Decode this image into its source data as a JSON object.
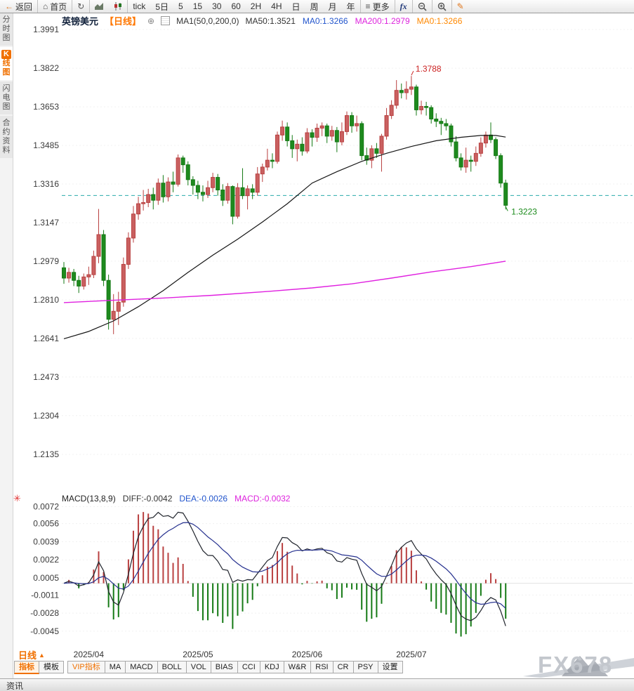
{
  "icons": {
    "back-arrow": "←",
    "home": "⌂",
    "refresh": "↻",
    "menu": "≡",
    "pencil": "✎",
    "add": "⊕",
    "indicator-settings": "✳"
  },
  "toolbar": {
    "items": [
      {
        "name": "back-button",
        "icon": "back-arrow",
        "accent": true,
        "label": "返回",
        "divider": true
      },
      {
        "name": "home-button",
        "icon": "home",
        "label": "首页",
        "divider": true
      },
      {
        "name": "refresh-button",
        "icon": "refresh",
        "divider": true
      },
      {
        "name": "area-chart-button",
        "icon": "area-chart"
      },
      {
        "name": "candle-chart-button",
        "icon": "candle-chart",
        "divider": true
      },
      {
        "name": "period-tick-button",
        "label": "tick"
      },
      {
        "name": "period-5d-button",
        "label": "5日"
      },
      {
        "name": "period-5m-button",
        "label": "5"
      },
      {
        "name": "period-15m-button",
        "label": "15"
      },
      {
        "name": "period-30m-button",
        "label": "30"
      },
      {
        "name": "period-60m-button",
        "label": "60"
      },
      {
        "name": "period-2h-button",
        "label": "2H"
      },
      {
        "name": "period-4h-button",
        "label": "4H"
      },
      {
        "name": "period-day-button",
        "label": "日"
      },
      {
        "name": "period-week-button",
        "label": "周"
      },
      {
        "name": "period-month-button",
        "label": "月"
      },
      {
        "name": "period-year-button",
        "label": "年",
        "divider": true
      },
      {
        "name": "more-button",
        "icon": "menu",
        "label": "更多",
        "divider": true
      },
      {
        "name": "fx-button",
        "label": "fx",
        "cls": "fx",
        "divider": true
      },
      {
        "name": "zoom-out-button",
        "icon": "zoom-out",
        "divider": true
      },
      {
        "name": "zoom-in-button",
        "icon": "zoom-in",
        "divider": true
      },
      {
        "name": "draw-button",
        "icon": "pencil",
        "accent": true
      }
    ]
  },
  "sidebar": {
    "items": [
      {
        "name": "tab-time-chart",
        "label": "分时图",
        "selected": false
      },
      {
        "name": "tab-candle-chart",
        "label": "K线图",
        "selected": true,
        "badge_first": true
      },
      {
        "name": "tab-lightning-chart",
        "label": "闪电图",
        "selected": false
      },
      {
        "name": "tab-contract-info",
        "label": "合约资料",
        "selected": false
      }
    ]
  },
  "chart_header": {
    "symbol": "英镑美元",
    "period_tag": "【日线】",
    "ma_settings": "MA1(50,0,200,0)",
    "ma_values": [
      {
        "text": "MA50:1.3521",
        "color": "#333333"
      },
      {
        "text": "MA0:1.3266",
        "color": "#2255cc"
      },
      {
        "text": "MA200:1.2979",
        "color": "#dd22dd"
      },
      {
        "text": "MA0:1.3266",
        "color": "#ff8800"
      }
    ]
  },
  "macd_header": {
    "title": "MACD(13,8,9)",
    "values": [
      {
        "text": "DIFF:-0.0042",
        "color": "#333333"
      },
      {
        "text": "DEA:-0.0026",
        "color": "#2255cc"
      },
      {
        "text": "MACD:-0.0032",
        "color": "#dd22dd"
      }
    ]
  },
  "chart_data": {
    "type": "candlestick",
    "symbol": "英镑美元 (GBP/USD)",
    "period": "日线",
    "indicator": "MACD(13,8,9)",
    "price_axis": [
      1.3991,
      1.3822,
      1.3653,
      1.3485,
      1.3316,
      1.3147,
      1.2979,
      1.281,
      1.2641,
      1.2473,
      1.2304,
      1.2135
    ],
    "macd_axis": [
      0.0072,
      0.0056,
      0.0039,
      0.0022,
      0.0005,
      -0.0011,
      -0.0028,
      -0.0045
    ],
    "date_axis": [
      {
        "index": 5,
        "label": "2025/04"
      },
      {
        "index": 27,
        "label": "2025/05"
      },
      {
        "index": 49,
        "label": "2025/06"
      },
      {
        "index": 70,
        "label": "2025/07"
      }
    ],
    "reference_price": 1.3266,
    "annotations": [
      {
        "type": "high",
        "index": 70,
        "price": 1.3788,
        "label": "1.3788",
        "color": "#cc2222"
      },
      {
        "type": "last",
        "index": 89,
        "price": 1.3223,
        "label": "1.3223",
        "color": "#1a8a1a"
      }
    ],
    "macd_params": {
      "slow": 13,
      "fast": 8,
      "signal": 9
    },
    "ma50_points": [
      [
        0,
        1.264
      ],
      [
        5,
        1.2672
      ],
      [
        10,
        1.2718
      ],
      [
        15,
        1.278
      ],
      [
        20,
        1.285
      ],
      [
        25,
        1.293
      ],
      [
        30,
        1.3005
      ],
      [
        35,
        1.3075
      ],
      [
        40,
        1.315
      ],
      [
        45,
        1.323
      ],
      [
        50,
        1.332
      ],
      [
        55,
        1.337
      ],
      [
        60,
        1.3415
      ],
      [
        65,
        1.345
      ],
      [
        70,
        1.348
      ],
      [
        75,
        1.3505
      ],
      [
        80,
        1.352
      ],
      [
        84,
        1.3528
      ],
      [
        87,
        1.3528
      ],
      [
        89,
        1.3521
      ]
    ],
    "ma200_points": [
      [
        0,
        1.2798
      ],
      [
        10,
        1.2808
      ],
      [
        20,
        1.2818
      ],
      [
        30,
        1.283
      ],
      [
        40,
        1.2845
      ],
      [
        50,
        1.2862
      ],
      [
        58,
        1.288
      ],
      [
        66,
        1.2905
      ],
      [
        74,
        1.2932
      ],
      [
        82,
        1.2955
      ],
      [
        89,
        1.2979
      ]
    ],
    "candles": [
      [
        1.295,
        1.2975,
        1.288,
        1.2905
      ],
      [
        1.2905,
        1.295,
        1.2885,
        1.293
      ],
      [
        1.293,
        1.2945,
        1.287,
        1.2895
      ],
      [
        1.2895,
        1.2915,
        1.284,
        1.287
      ],
      [
        1.287,
        1.2925,
        1.2855,
        1.291
      ],
      [
        1.291,
        1.2955,
        1.2875,
        1.292
      ],
      [
        1.292,
        1.3025,
        1.2905,
        1.3
      ],
      [
        1.3,
        1.3207,
        1.297,
        1.3095
      ],
      [
        1.3095,
        1.3115,
        1.287,
        1.2895
      ],
      [
        1.2895,
        1.292,
        1.268,
        1.2725
      ],
      [
        1.2725,
        1.2835,
        1.266,
        1.276
      ],
      [
        1.276,
        1.2845,
        1.27,
        1.28
      ],
      [
        1.28,
        1.2995,
        1.278,
        1.2965
      ],
      [
        1.2965,
        1.3105,
        1.2945,
        1.308
      ],
      [
        1.308,
        1.322,
        1.306,
        1.3185
      ],
      [
        1.3185,
        1.326,
        1.316,
        1.323
      ],
      [
        1.323,
        1.329,
        1.32,
        1.3235
      ],
      [
        1.3235,
        1.3295,
        1.3215,
        1.327
      ],
      [
        1.327,
        1.33,
        1.3205,
        1.3245
      ],
      [
        1.3245,
        1.334,
        1.3225,
        1.332
      ],
      [
        1.332,
        1.3355,
        1.3235,
        1.326
      ],
      [
        1.326,
        1.3345,
        1.324,
        1.3325
      ],
      [
        1.3325,
        1.337,
        1.328,
        1.3315
      ],
      [
        1.3315,
        1.3445,
        1.3305,
        1.343
      ],
      [
        1.343,
        1.344,
        1.3365,
        1.34
      ],
      [
        1.34,
        1.3415,
        1.331,
        1.3335
      ],
      [
        1.3335,
        1.335,
        1.327,
        1.331
      ],
      [
        1.331,
        1.333,
        1.325,
        1.328
      ],
      [
        1.328,
        1.331,
        1.324,
        1.327
      ],
      [
        1.327,
        1.333,
        1.3255,
        1.33
      ],
      [
        1.33,
        1.3365,
        1.328,
        1.3345
      ],
      [
        1.3345,
        1.336,
        1.3265,
        1.329
      ],
      [
        1.329,
        1.3315,
        1.322,
        1.3245
      ],
      [
        1.3245,
        1.332,
        1.323,
        1.3305
      ],
      [
        1.3305,
        1.331,
        1.314,
        1.3175
      ],
      [
        1.3175,
        1.332,
        1.3165,
        1.33
      ],
      [
        1.33,
        1.3385,
        1.325,
        1.3265
      ],
      [
        1.3265,
        1.331,
        1.3205,
        1.3295
      ],
      [
        1.3295,
        1.3315,
        1.325,
        1.328
      ],
      [
        1.328,
        1.339,
        1.3265,
        1.336
      ],
      [
        1.336,
        1.3405,
        1.3325,
        1.339
      ],
      [
        1.339,
        1.347,
        1.3375,
        1.342
      ],
      [
        1.342,
        1.345,
        1.3385,
        1.3415
      ],
      [
        1.3415,
        1.3545,
        1.3405,
        1.353
      ],
      [
        1.353,
        1.3593,
        1.3505,
        1.3565
      ],
      [
        1.3565,
        1.3585,
        1.348,
        1.3505
      ],
      [
        1.3505,
        1.353,
        1.343,
        1.347
      ],
      [
        1.347,
        1.351,
        1.3415,
        1.349
      ],
      [
        1.349,
        1.352,
        1.344,
        1.346
      ],
      [
        1.346,
        1.356,
        1.345,
        1.354
      ],
      [
        1.354,
        1.3555,
        1.348,
        1.352
      ],
      [
        1.352,
        1.358,
        1.35,
        1.356
      ],
      [
        1.356,
        1.3585,
        1.3525,
        1.357
      ],
      [
        1.357,
        1.358,
        1.3495,
        1.3525
      ],
      [
        1.3525,
        1.357,
        1.3505,
        1.355
      ],
      [
        1.355,
        1.3565,
        1.3455,
        1.35
      ],
      [
        1.35,
        1.3585,
        1.3485,
        1.3545
      ],
      [
        1.3545,
        1.3633,
        1.353,
        1.3615
      ],
      [
        1.3615,
        1.363,
        1.354,
        1.357
      ],
      [
        1.357,
        1.3615,
        1.3545,
        1.358
      ],
      [
        1.358,
        1.359,
        1.342,
        1.344
      ],
      [
        1.344,
        1.3475,
        1.34,
        1.342
      ],
      [
        1.342,
        1.3485,
        1.3385,
        1.347
      ],
      [
        1.347,
        1.3495,
        1.343,
        1.345
      ],
      [
        1.345,
        1.3535,
        1.337,
        1.3525
      ],
      [
        1.3525,
        1.3648,
        1.351,
        1.3615
      ],
      [
        1.3615,
        1.3682,
        1.36,
        1.366
      ],
      [
        1.366,
        1.377,
        1.3645,
        1.3725
      ],
      [
        1.3725,
        1.3755,
        1.369,
        1.3715
      ],
      [
        1.3715,
        1.3765,
        1.3685,
        1.373
      ],
      [
        1.373,
        1.3788,
        1.3705,
        1.374
      ],
      [
        1.374,
        1.375,
        1.3615,
        1.364
      ],
      [
        1.364,
        1.368,
        1.362,
        1.3655
      ],
      [
        1.3655,
        1.3675,
        1.3615,
        1.365
      ],
      [
        1.365,
        1.366,
        1.358,
        1.36
      ],
      [
        1.36,
        1.3625,
        1.3565,
        1.359
      ],
      [
        1.359,
        1.3605,
        1.353,
        1.358
      ],
      [
        1.358,
        1.36,
        1.355,
        1.357
      ],
      [
        1.357,
        1.358,
        1.348,
        1.35
      ],
      [
        1.35,
        1.3525,
        1.3415,
        1.343
      ],
      [
        1.343,
        1.345,
        1.3375,
        1.339
      ],
      [
        1.339,
        1.3475,
        1.3365,
        1.342
      ],
      [
        1.342,
        1.344,
        1.337,
        1.3415
      ],
      [
        1.3415,
        1.348,
        1.3395,
        1.345
      ],
      [
        1.345,
        1.352,
        1.3435,
        1.3495
      ],
      [
        1.3495,
        1.3545,
        1.3475,
        1.353
      ],
      [
        1.353,
        1.3585,
        1.3495,
        1.351
      ],
      [
        1.351,
        1.352,
        1.3425,
        1.344
      ],
      [
        1.344,
        1.345,
        1.33,
        1.332
      ],
      [
        1.332,
        1.3335,
        1.3205,
        1.3223
      ]
    ],
    "colors": {
      "up": "#b94040",
      "up_fill": "#c96060",
      "down": "#157a15",
      "down_fill": "#1e8a1e",
      "ma50": "#161616",
      "ma200": "#e020e0",
      "diff": "#20242c",
      "dea": "#26318f",
      "ref": "#2aabab",
      "axis_text": "#3a3a3a"
    }
  },
  "bottom_bar": {
    "period_label": "日线",
    "period_arrow": "▲",
    "tabs": [
      {
        "name": "tab-indicator",
        "label": "指标",
        "selected": true
      },
      {
        "name": "tab-template",
        "label": "模板"
      },
      {
        "name": "tab-vip-indicator",
        "label": "VIP指标",
        "accent": true,
        "gap": true
      },
      {
        "name": "tab-ma",
        "label": "MA"
      },
      {
        "name": "tab-macd",
        "label": "MACD"
      },
      {
        "name": "tab-boll",
        "label": "BOLL"
      },
      {
        "name": "tab-vol",
        "label": "VOL"
      },
      {
        "name": "tab-bias",
        "label": "BIAS"
      },
      {
        "name": "tab-cci",
        "label": "CCI"
      },
      {
        "name": "tab-kdj",
        "label": "KDJ"
      },
      {
        "name": "tab-wr",
        "label": "W&R"
      },
      {
        "name": "tab-rsi",
        "label": "RSI"
      },
      {
        "name": "tab-cr",
        "label": "CR"
      },
      {
        "name": "tab-psy",
        "label": "PSY"
      },
      {
        "name": "tab-settings",
        "label": "设置"
      }
    ]
  },
  "statusbar": {
    "items": [
      {
        "name": "tab-news",
        "label": "资讯"
      }
    ]
  },
  "watermark": {
    "text": "FX678"
  }
}
